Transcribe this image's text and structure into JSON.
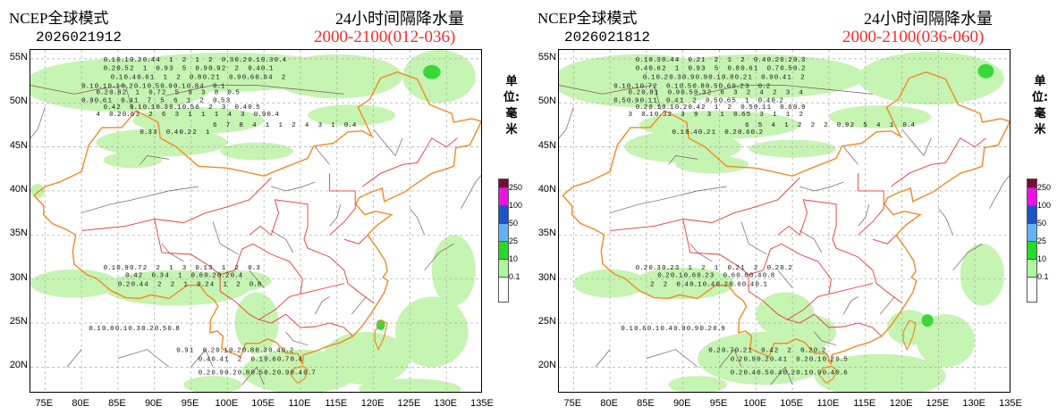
{
  "panels": [
    {
      "model": "NCEP全球模式",
      "run": "2026021912",
      "title": "24小时间隔降水量",
      "period": "2000-2100(012-036)",
      "unit": "单位:毫米",
      "values": [
        [
          "0.1",
          "0.1",
          "0.2",
          "0.4",
          "4",
          "1",
          "2",
          "1",
          "2",
          "0.3",
          "0.2",
          "0.1",
          "0.3",
          "0.4"
        ],
        [
          "0.2",
          "0.5",
          "2",
          "1",
          "0.9",
          "3",
          "5",
          "0.9",
          "0.9",
          "2",
          "2",
          "0.4",
          "0.1"
        ],
        [
          "0.1",
          "0.4",
          "0.6",
          "1",
          "1",
          "2",
          "0.8",
          "0.2",
          "1",
          "0.9",
          "0.6",
          "0.9",
          "4",
          "2"
        ],
        [
          "0.1",
          "0.1",
          "0.1",
          "0.2",
          "0.1",
          "0.5",
          "0.9",
          "0.1",
          "0.8",
          "4",
          "0.1"
        ],
        [
          "0.2",
          "0.8",
          "2",
          "1",
          "0.7",
          "2",
          "5",
          "9",
          "3",
          "8",
          "0.5"
        ],
        [
          "0.9",
          "0.6",
          "1",
          "0.4",
          "1",
          "7",
          "5",
          "6",
          "1",
          "2",
          "0.5",
          "3"
        ],
        [
          "0.4",
          "2",
          "0.1",
          "0.1",
          "0.3",
          "0.1",
          "0.5",
          "6",
          "2",
          "3",
          "0.4",
          "0.5"
        ],
        [
          "4",
          "0.2",
          "0.6",
          "3",
          "2",
          "6",
          "3",
          "1",
          "1",
          "1",
          "4",
          "3",
          "0.9",
          "0.4"
        ],
        [
          "6",
          "7",
          "8",
          "4",
          "1",
          "1",
          "2",
          "4",
          "3",
          "1",
          "0.4"
        ],
        [
          "0.3",
          "3",
          "0.4",
          "0.2",
          "2",
          "1"
        ],
        [
          "0.1",
          "0.9",
          "0.7",
          "2",
          "2",
          "1",
          "3",
          "0.1",
          "3",
          "1",
          "2",
          "0.3"
        ],
        [
          "0.4",
          "2",
          "0.3",
          "4",
          "1",
          "0.6",
          "0.2",
          "0.2",
          "0.4"
        ],
        [
          "0.2",
          "0.4",
          "4",
          "2",
          "2",
          "1",
          "0.2",
          "4",
          "1",
          "2",
          "0.8"
        ],
        [
          "0.1",
          "0.8",
          "0.1",
          "0.3",
          "0.2",
          "0.5",
          "0.8"
        ],
        [
          "0.9",
          "1",
          "0.2",
          "0.1",
          "0.2",
          "0.8",
          "0.3",
          "0.4",
          "0.2"
        ],
        [
          "0.4",
          "0.4",
          "1",
          "2",
          "0.1",
          "0.6",
          "0.7",
          "0.4"
        ],
        [
          "0.2",
          "0.9",
          "0.2",
          "0.8",
          "0.5",
          "0.2",
          "0.9",
          "0.4",
          "0.7"
        ]
      ]
    },
    {
      "model": "NCEP全球模式",
      "run": "2026021812",
      "title": "24小时间隔降水量",
      "period": "2000-2100(036-060)",
      "unit": "单位:毫米",
      "values": [
        [
          "0.1",
          "0.3",
          "0.4",
          "4",
          "0.2",
          "1",
          "2",
          "1",
          "2",
          "0.4",
          "0.2",
          "0.2",
          "0.3"
        ],
        [
          "0.4",
          "0.6",
          "2",
          "1",
          "0.9",
          "3",
          "5",
          "0.8",
          "0.6",
          "1",
          "0.7",
          "0.5",
          "0.2"
        ],
        [
          "0.1",
          "0.2",
          "0.3",
          "0.9",
          "0.9",
          "0.1",
          "0.8",
          "0.2",
          "1",
          "0.9",
          "0.4",
          "1",
          "2"
        ],
        [
          "0.1",
          "0.1",
          "0.7",
          "2",
          "0.1",
          "0.5",
          "0.8",
          "0.5",
          "0.6",
          "0.2",
          "3",
          "0.2"
        ],
        [
          "0.2",
          "0.8",
          "1",
          "0.9",
          "0.5",
          "0.3",
          "2",
          "6",
          "3",
          "2",
          "4",
          "2",
          "3",
          "4"
        ],
        [
          "0.5",
          "0.9",
          "0.1",
          "1",
          "0.4",
          "1",
          "2",
          "0.5",
          "0.6",
          "5",
          "1",
          "0.4",
          "0.2"
        ],
        [
          "0.2",
          "0.1",
          "0.1",
          "0.2",
          "0.4",
          "2",
          "1",
          "2",
          "0.5",
          "0.1",
          "1",
          "0.6",
          "0.9"
        ],
        [
          "3",
          "0.1",
          "0.3",
          "2",
          "3",
          "9",
          "3",
          "1",
          "0.6",
          "5",
          "3",
          "1",
          "1",
          "2"
        ],
        [
          "6",
          "5",
          "4",
          "1",
          "2",
          "2",
          "2",
          "0.9",
          "2",
          "5",
          "4",
          "1",
          "0.4"
        ],
        [
          "0.1",
          "0.4",
          "0.2",
          "1",
          "0.2",
          "0.6",
          "0.2"
        ],
        [
          "0.2",
          "0.3",
          "0.2",
          "3",
          "1",
          "2",
          "1",
          "0.2",
          "1",
          "2",
          "0.2",
          "0.2"
        ],
        [
          "0.2",
          "0.1",
          "0.6",
          "0.2",
          "3",
          "0.6",
          "0.8",
          "0.4",
          "0.8"
        ],
        [
          "2",
          "2",
          "0.4",
          "0.1",
          "0.4",
          "0.2",
          "0.6",
          "0.4",
          "0.1"
        ],
        [
          "0.1",
          "0.6",
          "0.1",
          "0.4",
          "0.9",
          "0.9",
          "0.2",
          "0.9"
        ],
        [
          "0.2",
          "0.7",
          "0.2",
          "1",
          "0.4",
          "2",
          "2",
          "0.2",
          "0.2"
        ],
        [
          "0.2",
          "0.9",
          "0.2",
          "0.4",
          "1",
          "0.2",
          "0.1",
          "0.2",
          "0.5"
        ],
        [
          "0.2",
          "0.4",
          "0.5",
          "0.4",
          "0.2",
          "0.1",
          "0.9",
          "0.4",
          "0.6"
        ]
      ]
    }
  ],
  "axes": {
    "x_labels": [
      "75E",
      "80E",
      "85E",
      "90E",
      "95E",
      "100E",
      "105E",
      "110E",
      "115E",
      "120E",
      "125E",
      "130E",
      "135E"
    ],
    "y_labels": [
      "55N",
      "50N",
      "45N",
      "40N",
      "35N",
      "30N",
      "25N",
      "20N"
    ],
    "lon_range": [
      73,
      135
    ],
    "lat_range": [
      17,
      56
    ]
  },
  "legend": {
    "levels": [
      "250",
      "100",
      "50",
      "25",
      "10",
      "0.1"
    ],
    "colors": [
      "#7a0a37",
      "#ee10e6",
      "#1a54c8",
      "#62b2f5",
      "#22dd22",
      "#b0f5a0",
      "#ffffff"
    ]
  },
  "colors": {
    "rain_light": "#c6f4b2",
    "rain_mid": "#38d838",
    "border_national": "#f08a24",
    "border_province": "#e8383c",
    "border_prefecture": "#7a5a5a",
    "grid": "#aaaaaa"
  }
}
